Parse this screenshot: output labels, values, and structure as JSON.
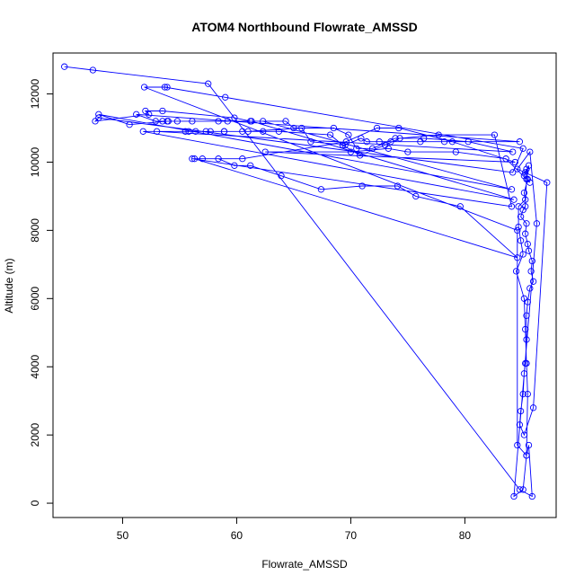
{
  "chart_data": {
    "type": "scatter",
    "title": "ATOM4 Northbound Flowrate_AMSSD",
    "xlabel": "Flowrate_AMSSD",
    "ylabel": "Altitude (m)",
    "xlim": [
      43.9,
      88.0
    ],
    "ylim": [
      -420,
      13200
    ],
    "x_ticks": [
      50,
      60,
      70,
      80
    ],
    "y_ticks": [
      0,
      2000,
      4000,
      6000,
      8000,
      10000,
      12000
    ],
    "grid": false,
    "legend": "none",
    "series": [
      {
        "color": "#0000ff",
        "marker": "open-circle",
        "connected": true,
        "x": [
          44.9,
          47.4,
          57.5,
          84.8,
          85.9,
          85.6,
          85.4,
          85.5,
          85.4,
          85.3,
          85.2,
          84.5,
          85.1,
          84.9,
          84.7,
          84.7,
          85.3,
          85.2,
          85.5,
          85.4,
          85.3,
          85.2,
          85.6,
          85.4,
          85.3,
          85.1,
          84.9,
          85.4,
          85.3,
          85.5,
          85.6,
          85.9,
          85.8,
          86.0,
          85.7,
          85.5,
          85.4,
          85.4,
          85.3,
          85.2,
          85.1,
          84.9,
          84.8,
          85.2,
          86.0,
          87.2,
          84.6,
          85.7,
          86.3,
          84.3,
          85.1,
          85.4,
          84.6,
          84.6,
          51.9,
          53.9,
          53.7,
          59.0,
          85.1,
          84.2,
          47.9,
          47.6,
          52.3,
          52.0,
          53.5,
          59.8,
          61.2,
          62.3,
          84.1,
          47.9,
          50.6,
          53.9,
          59.2,
          61.3,
          84.3,
          51.8,
          55.8,
          57.7,
          58.9,
          61.0,
          65.7,
          66.5,
          69.5,
          70.9,
          71.4,
          72.5,
          73.5,
          76.1,
          78.2,
          84.8,
          51.2,
          52.9,
          53.5,
          54.0,
          54.8,
          56.1,
          58.4,
          64.3,
          65.0,
          68.5,
          69.8,
          70.5,
          71.9,
          73.9,
          76.4,
          80.3,
          84.2,
          53.0,
          55.5,
          56.4,
          57.3,
          58.9,
          60.5,
          62.3,
          63.7,
          68.2,
          69.3,
          70.8,
          73.0,
          74.3,
          77.7,
          82.6,
          84.1,
          56.1,
          57.0,
          58.4,
          59.8,
          61.2,
          63.9,
          67.4,
          71.0,
          74.1,
          75.7,
          79.6,
          84.6,
          56.3,
          60.5,
          69.6,
          72.3,
          74.2,
          78.9,
          84.4,
          62.5,
          70.0,
          73.3,
          75.0,
          79.2,
          83.6,
          85.7
        ],
        "y": [
          12800,
          12700,
          12300,
          400,
          200,
          1700,
          1400,
          3200,
          4100,
          5100,
          6000,
          6800,
          7300,
          7700,
          8100,
          8700,
          8900,
          9100,
          9500,
          9800,
          9700,
          9600,
          9900,
          9500,
          8700,
          8600,
          8400,
          8200,
          7900,
          7600,
          7400,
          7100,
          6800,
          6500,
          6300,
          5900,
          5500,
          4800,
          4100,
          3800,
          3200,
          2700,
          2300,
          2000,
          2800,
          9400,
          9800,
          10300,
          8200,
          200,
          400,
          1400,
          1700,
          8000,
          12200,
          12200,
          12200,
          11900,
          10400,
          9700,
          11300,
          11200,
          11400,
          11500,
          11500,
          11300,
          11200,
          11200,
          9200,
          11400,
          11100,
          11200,
          11200,
          11200,
          8900,
          10900,
          10900,
          10900,
          10900,
          10900,
          11000,
          10600,
          10500,
          10700,
          10600,
          10600,
          10600,
          10600,
          10600,
          10600,
          11400,
          11200,
          11200,
          11200,
          11200,
          11200,
          11200,
          11200,
          11000,
          11000,
          10800,
          10400,
          10400,
          10700,
          10700,
          10600,
          10300,
          10900,
          10900,
          10900,
          10900,
          10900,
          10900,
          10900,
          10900,
          10800,
          10500,
          10200,
          10500,
          10700,
          10800,
          10800,
          8700,
          10100,
          10100,
          10100,
          9900,
          9900,
          9600,
          9200,
          9300,
          9300,
          9000,
          8700,
          7200,
          10100,
          10100,
          10600,
          11000,
          11000,
          10600,
          10000,
          10300,
          10300,
          10400,
          10300,
          10300,
          10100,
          9400
        ]
      }
    ]
  }
}
